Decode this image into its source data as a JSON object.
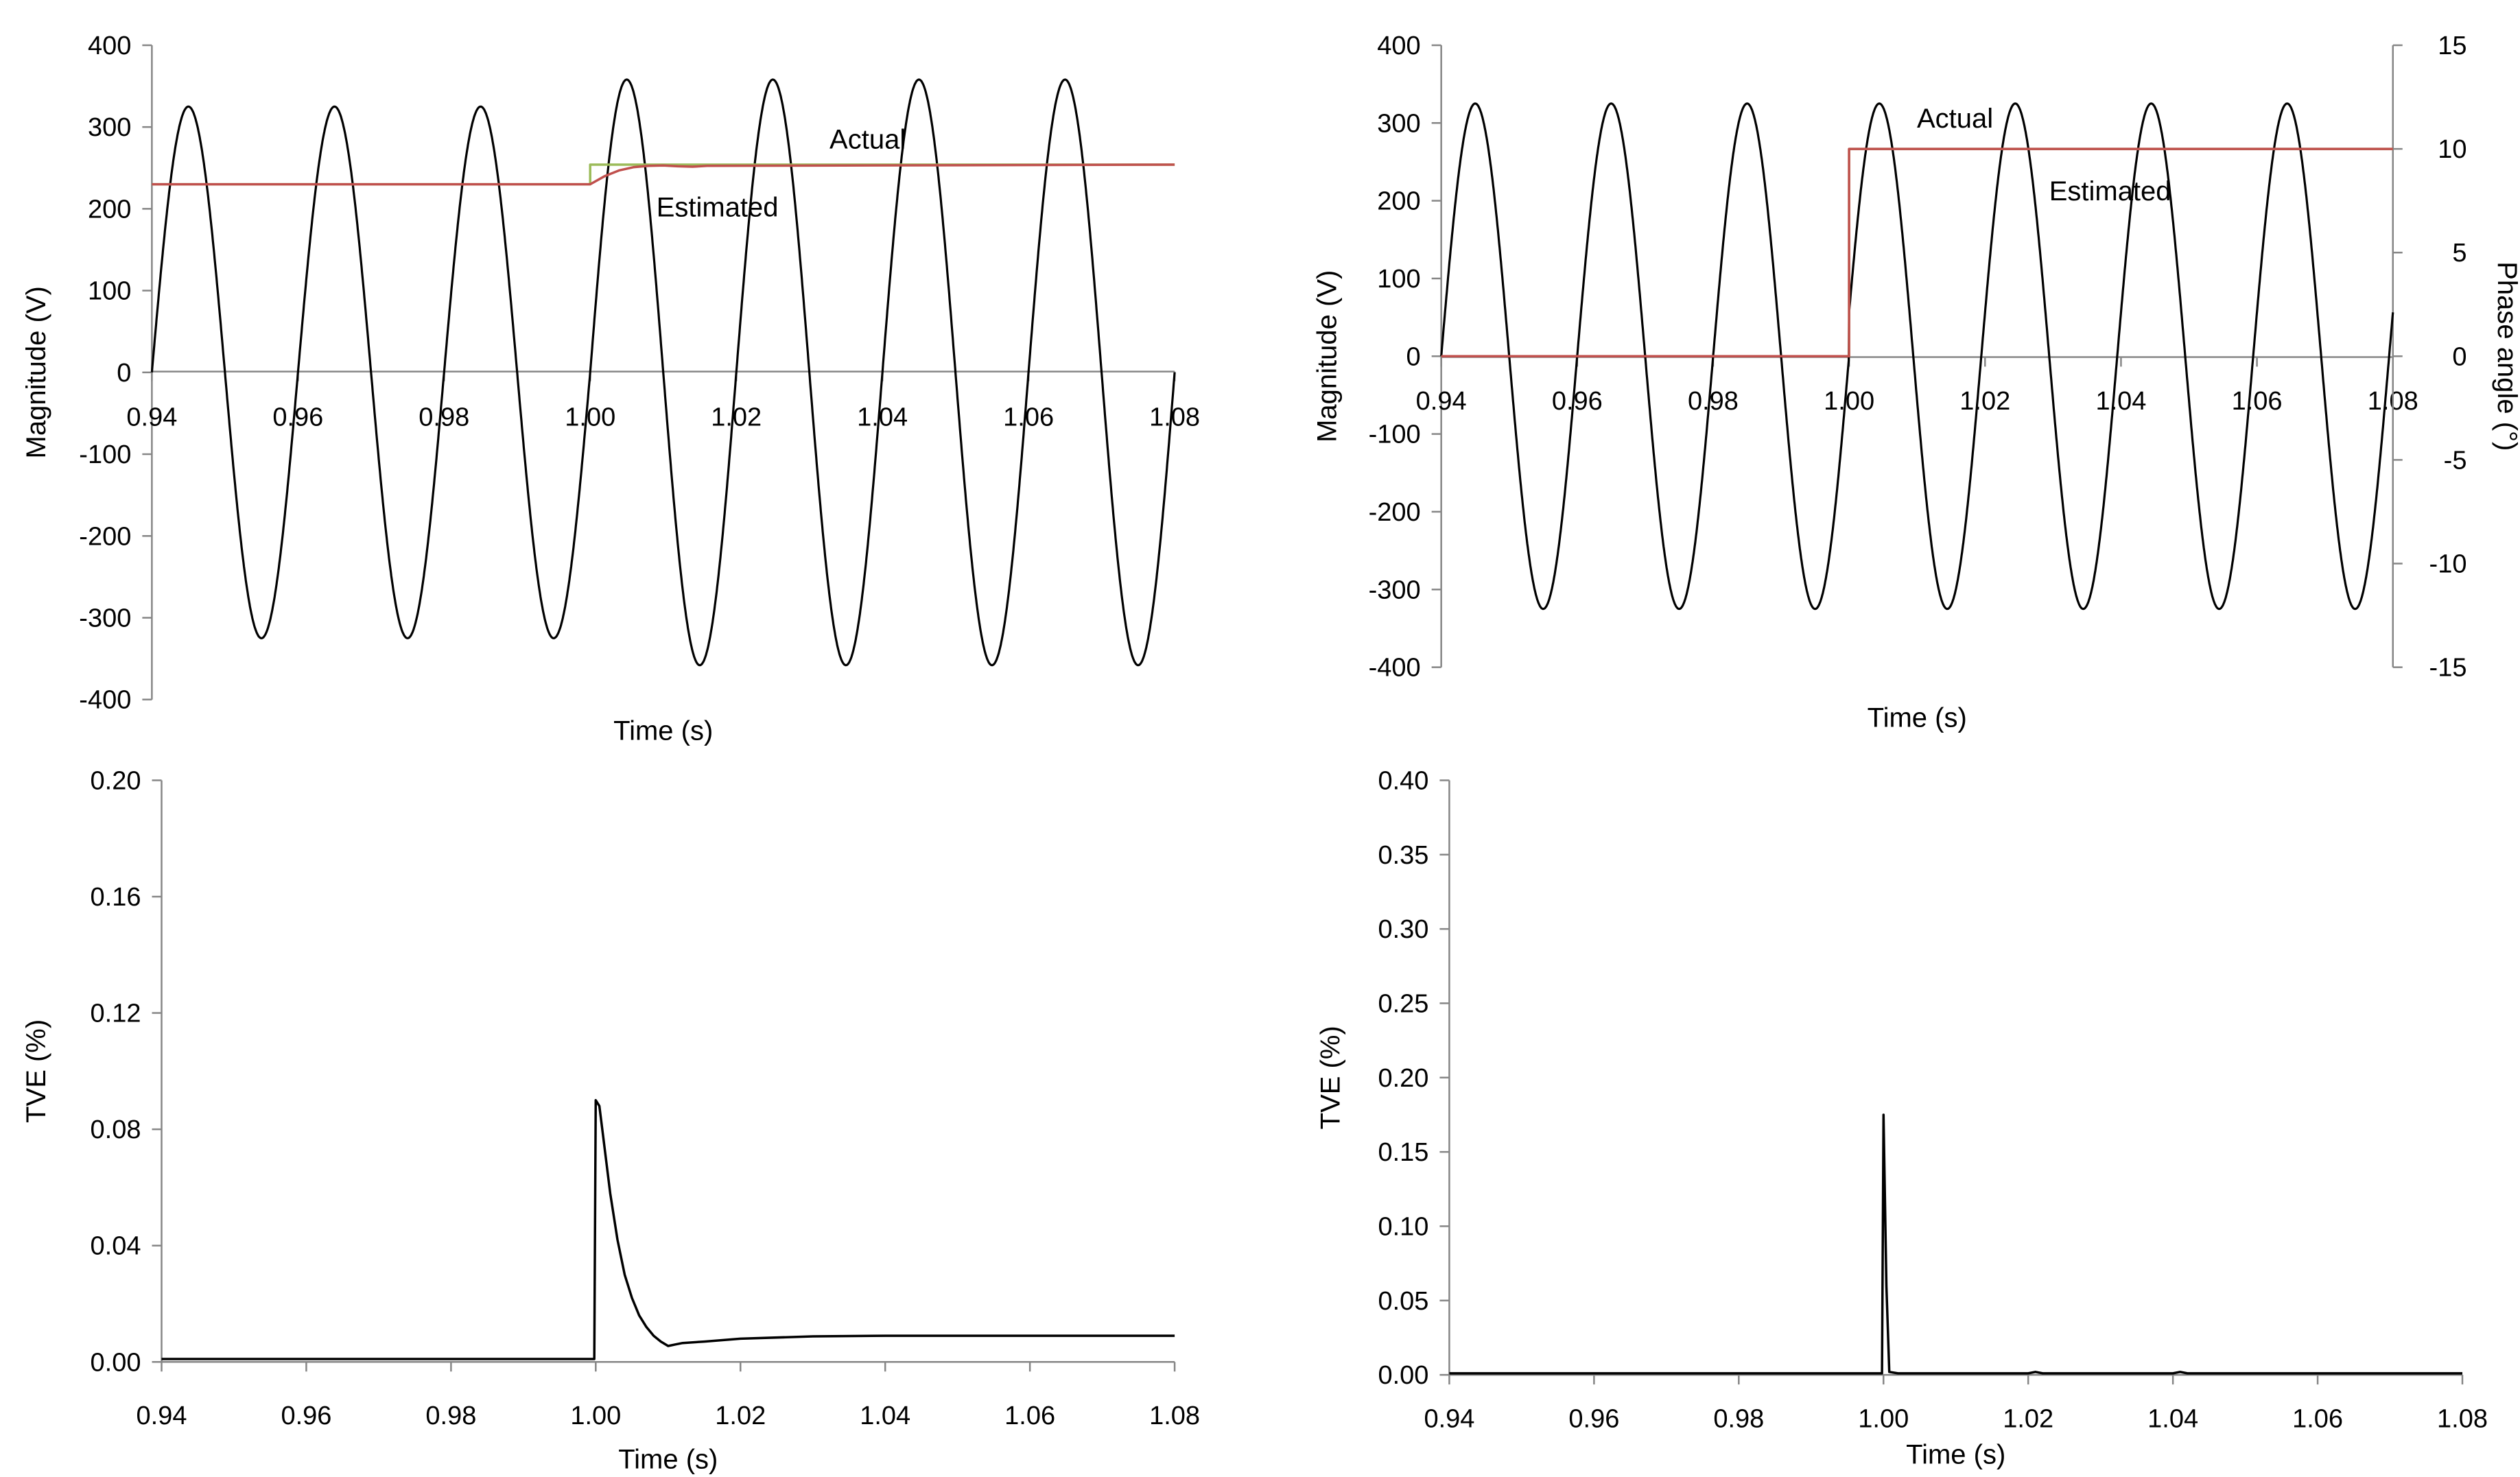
{
  "chart_data": [
    {
      "id": "top_left",
      "type": "line",
      "xlabel": "Time (s)",
      "ylabel": "Magnitude  (V)",
      "xlim": [
        0.94,
        1.08
      ],
      "ylim": [
        -400,
        400
      ],
      "x_ticks": [
        "0.94",
        "0.96",
        "0.98",
        "1.00",
        "1.02",
        "1.04",
        "1.06",
        "1.08"
      ],
      "y_ticks": [
        "400",
        "300",
        "200",
        "100",
        "0",
        "-100",
        "-200",
        "-300",
        "-400"
      ],
      "annotations": [
        "Actual",
        "Estimated"
      ],
      "series": [
        {
          "name": "Waveform",
          "kind": "sine",
          "frequency_hz": 50,
          "amplitude_before": 325,
          "amplitude_after": 358,
          "step_time": 1.0,
          "color": "#000000"
        },
        {
          "name": "Actual",
          "kind": "step",
          "x": [
            0.94,
            1.0,
            1.0,
            1.08
          ],
          "y": [
            230,
            230,
            254,
            254
          ],
          "color": "#9bbb59"
        },
        {
          "name": "Estimated",
          "kind": "response",
          "x": [
            0.94,
            1.0,
            1.002,
            1.004,
            1.006,
            1.008,
            1.01,
            1.012,
            1.014,
            1.016,
            1.08
          ],
          "y": [
            230,
            230,
            240,
            247,
            251,
            252.5,
            253,
            252,
            251.5,
            252.5,
            254
          ],
          "color": "#c0504d"
        }
      ]
    },
    {
      "id": "top_right",
      "type": "line",
      "xlabel": "Time (s)",
      "ylabel": "Magnitude  (V)",
      "y2label": "Phase angle  (°)",
      "xlim": [
        0.94,
        1.08
      ],
      "ylim": [
        -400,
        400
      ],
      "y2lim": [
        -15,
        15
      ],
      "x_ticks": [
        "0.94",
        "0.96",
        "0.98",
        "1.00",
        "1.02",
        "1.04",
        "1.06",
        "1.08"
      ],
      "y_ticks": [
        "400",
        "300",
        "200",
        "100",
        "0",
        "-100",
        "-200",
        "-300",
        "-400"
      ],
      "y2_ticks": [
        "15",
        "10",
        "5",
        "0",
        "-5",
        "-10",
        "-15"
      ],
      "annotations": [
        "Actual",
        "Estimated"
      ],
      "series": [
        {
          "name": "Waveform",
          "kind": "sine",
          "frequency_hz": 50,
          "amplitude": 325,
          "phase_step_deg": 10,
          "step_time": 1.0,
          "color": "#000000"
        },
        {
          "name": "Actual",
          "kind": "step",
          "axis": "y2",
          "x": [
            0.94,
            1.0,
            1.0,
            1.08
          ],
          "y": [
            0,
            0,
            10,
            10
          ],
          "color": "#9bbb59"
        },
        {
          "name": "Estimated",
          "kind": "step",
          "axis": "y2",
          "x": [
            0.94,
            1.0,
            1.0,
            1.08
          ],
          "y": [
            0,
            0,
            10,
            10
          ],
          "color": "#c0504d"
        }
      ]
    },
    {
      "id": "bottom_left",
      "type": "line",
      "xlabel": "Time (s)",
      "ylabel": "TVE (%)",
      "xlim": [
        0.94,
        1.08
      ],
      "ylim": [
        0,
        0.2
      ],
      "x_ticks": [
        "0.94",
        "0.96",
        "0.98",
        "1.00",
        "1.02",
        "1.04",
        "1.06",
        "1.08"
      ],
      "y_ticks": [
        "0.20",
        "0.16",
        "0.12",
        "0.08",
        "0.04",
        "0.00"
      ],
      "series": [
        {
          "name": "TVE",
          "x": [
            0.94,
            0.9998,
            1.0,
            1.0005,
            1.001,
            1.002,
            1.003,
            1.004,
            1.005,
            1.006,
            1.007,
            1.008,
            1.009,
            1.01,
            1.011,
            1.012,
            1.015,
            1.02,
            1.03,
            1.04,
            1.08
          ],
          "y": [
            0.001,
            0.001,
            0.09,
            0.088,
            0.078,
            0.058,
            0.042,
            0.03,
            0.022,
            0.016,
            0.012,
            0.009,
            0.007,
            0.0055,
            0.006,
            0.0065,
            0.007,
            0.008,
            0.0088,
            0.009,
            0.009
          ],
          "color": "#000000"
        }
      ]
    },
    {
      "id": "bottom_right",
      "type": "line",
      "xlabel": "Time (s)",
      "ylabel": "TVE (%)",
      "xlim": [
        0.94,
        1.08
      ],
      "ylim": [
        0,
        0.4
      ],
      "x_ticks": [
        "0.94",
        "0.96",
        "0.98",
        "1.00",
        "1.02",
        "1.04",
        "1.06",
        "1.08"
      ],
      "y_ticks": [
        "0.40",
        "0.35",
        "0.30",
        "0.25",
        "0.20",
        "0.15",
        "0.10",
        "0.05",
        "0.00"
      ],
      "series": [
        {
          "name": "TVE",
          "x": [
            0.94,
            0.9998,
            1.0,
            1.0004,
            1.0008,
            1.002,
            1.02,
            1.021,
            1.022,
            1.04,
            1.041,
            1.042,
            1.08
          ],
          "y": [
            0.001,
            0.001,
            0.175,
            0.06,
            0.002,
            0.001,
            0.001,
            0.002,
            0.001,
            0.001,
            0.002,
            0.001,
            0.001
          ],
          "color": "#000000"
        }
      ]
    }
  ]
}
